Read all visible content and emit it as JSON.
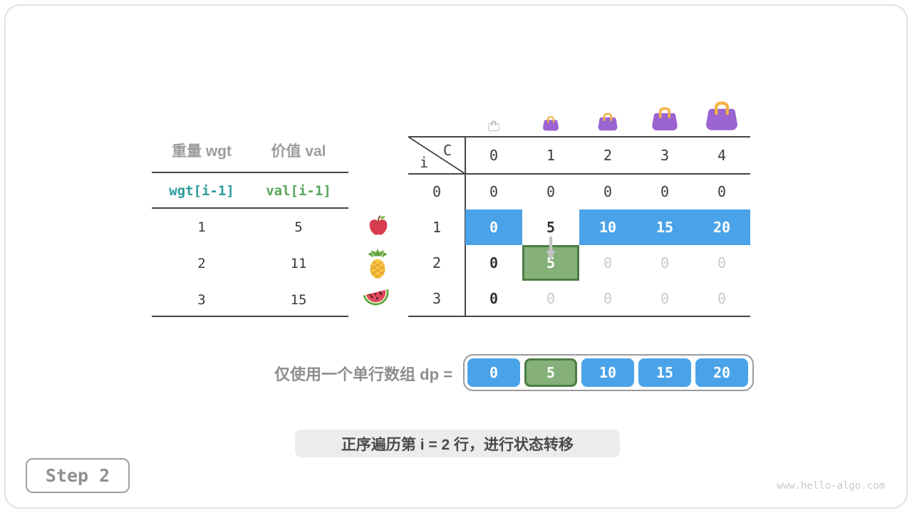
{
  "page": {
    "step_label": "Step 2",
    "caption": "正序遍历第 i = 2 行，进行状态转移",
    "watermark": "www.hello-algo.com"
  },
  "items_table": {
    "col_headers": [
      "重量 wgt",
      "价值 val"
    ],
    "index_labels": [
      "wgt[i-1]",
      "val[i-1]"
    ],
    "rows": [
      [
        "1",
        "5"
      ],
      [
        "2",
        "11"
      ],
      [
        "3",
        "15"
      ]
    ],
    "row_icons": [
      "apple-icon",
      "pineapple-icon",
      "watermelon-icon"
    ]
  },
  "dp_table": {
    "corner_top": "C",
    "corner_bottom": "i",
    "col_headers": [
      "0",
      "1",
      "2",
      "3",
      "4"
    ],
    "capacity_icons": [
      "bag-outline-icon",
      "bag-small-icon",
      "bag-medium-icon",
      "bag-large-icon",
      "bag-xlarge-icon"
    ],
    "rows": [
      {
        "header": "0",
        "cells": [
          {
            "v": "0",
            "style": "plain"
          },
          {
            "v": "0",
            "style": "plain"
          },
          {
            "v": "0",
            "style": "plain"
          },
          {
            "v": "0",
            "style": "plain"
          },
          {
            "v": "0",
            "style": "plain"
          }
        ]
      },
      {
        "header": "1",
        "cells": [
          {
            "v": "0",
            "style": "blue"
          },
          {
            "v": "5",
            "style": "bold"
          },
          {
            "v": "10",
            "style": "blue"
          },
          {
            "v": "15",
            "style": "blue"
          },
          {
            "v": "20",
            "style": "blue"
          }
        ]
      },
      {
        "header": "2",
        "cells": [
          {
            "v": "0",
            "style": "bold"
          },
          {
            "v": "5",
            "style": "green"
          },
          {
            "v": "0",
            "style": "dim"
          },
          {
            "v": "0",
            "style": "dim"
          },
          {
            "v": "0",
            "style": "dim"
          }
        ]
      },
      {
        "header": "3",
        "cells": [
          {
            "v": "0",
            "style": "bold"
          },
          {
            "v": "0",
            "style": "dim"
          },
          {
            "v": "0",
            "style": "dim"
          },
          {
            "v": "0",
            "style": "dim"
          },
          {
            "v": "0",
            "style": "dim"
          }
        ]
      }
    ],
    "transfer_arrow": {
      "from_cell": "i=1, c=1",
      "to_cell": "i=2, c=1"
    }
  },
  "dp_array": {
    "label": "仅使用一个单行数组 dp =",
    "cells": [
      {
        "v": "0",
        "style": "blue"
      },
      {
        "v": "5",
        "style": "green"
      },
      {
        "v": "10",
        "style": "blue"
      },
      {
        "v": "15",
        "style": "blue"
      },
      {
        "v": "20",
        "style": "blue"
      }
    ]
  },
  "colors": {
    "highlight_blue": "#4aa3e8",
    "highlight_green": "#85b07a",
    "green_border": "#4c7c44",
    "dim_text": "#c9c9c9",
    "dark_text": "#3b3b3b",
    "gray_heading": "#9c9c9c",
    "teal_code": "#2b9c9c",
    "green_code": "#57a55a",
    "bag_purple": "#9b64d0",
    "bag_handle": "#f2b246"
  }
}
